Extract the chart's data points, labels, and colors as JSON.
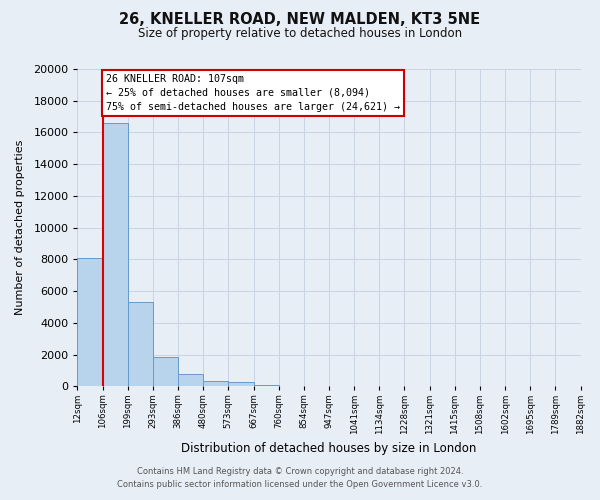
{
  "title": "26, KNELLER ROAD, NEW MALDEN, KT3 5NE",
  "subtitle": "Size of property relative to detached houses in London",
  "xlabel": "Distribution of detached houses by size in London",
  "ylabel": "Number of detached properties",
  "bin_labels": [
    "12sqm",
    "106sqm",
    "199sqm",
    "293sqm",
    "386sqm",
    "480sqm",
    "573sqm",
    "667sqm",
    "760sqm",
    "854sqm",
    "947sqm",
    "1041sqm",
    "1134sqm",
    "1228sqm",
    "1321sqm",
    "1415sqm",
    "1508sqm",
    "1602sqm",
    "1695sqm",
    "1789sqm",
    "1882sqm"
  ],
  "bar_heights": [
    8100,
    16600,
    5300,
    1850,
    750,
    320,
    280,
    90,
    0,
    0,
    0,
    0,
    0,
    0,
    0,
    0,
    0,
    0,
    0,
    0
  ],
  "bar_color": "#b8d4ec",
  "bar_edge_color": "#6699cc",
  "ylim": [
    0,
    20000
  ],
  "yticks": [
    0,
    2000,
    4000,
    6000,
    8000,
    10000,
    12000,
    14000,
    16000,
    18000,
    20000
  ],
  "red_line_bin": 1,
  "red_line_color": "#dd0000",
  "annotation_box_text_line1": "26 KNELLER ROAD: 107sqm",
  "annotation_box_text_line2": "← 25% of detached houses are smaller (8,094)",
  "annotation_box_text_line3": "75% of semi-detached houses are larger (24,621) →",
  "annotation_box_edge_color": "#cc0000",
  "annotation_box_bg": "#ffffff",
  "grid_color": "#c8d4e4",
  "background_color": "#e8eef6",
  "footer_line1": "Contains HM Land Registry data © Crown copyright and database right 2024.",
  "footer_line2": "Contains public sector information licensed under the Open Government Licence v3.0."
}
